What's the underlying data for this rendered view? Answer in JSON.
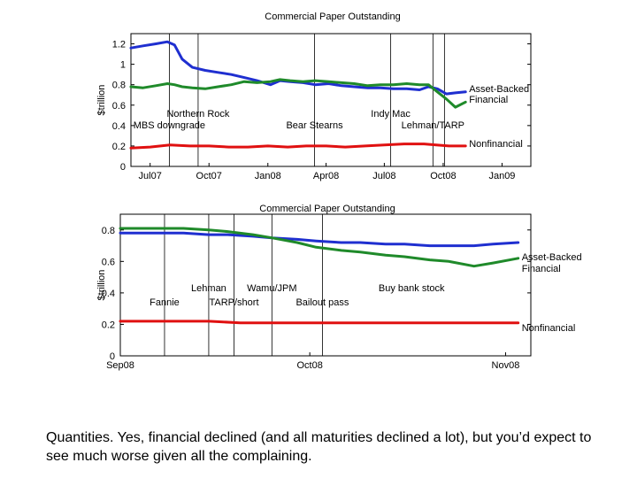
{
  "chart_data": [
    {
      "type": "line",
      "title": "Commercial Paper Outstanding",
      "ylabel": "$trillion",
      "ylim": [
        0,
        1.3
      ],
      "yticks": [
        "0",
        "0.2",
        "0.4",
        "0.6",
        "0.8",
        "1",
        "1.2"
      ],
      "xlim": [
        "2007-06-01",
        "2009-02-15"
      ],
      "xticks": [
        {
          "date": "2007-07-01",
          "label": "Jul07"
        },
        {
          "date": "2007-10-01",
          "label": "Oct07"
        },
        {
          "date": "2008-01-01",
          "label": "Jan08"
        },
        {
          "date": "2008-04-01",
          "label": "Apr08"
        },
        {
          "date": "2008-07-01",
          "label": "Jul08"
        },
        {
          "date": "2008-10-01",
          "label": "Oct08"
        },
        {
          "date": "2009-01-01",
          "label": "Jan09"
        }
      ],
      "events": [
        {
          "date": "2007-07-31",
          "labels": [
            "MBS downgrade"
          ]
        },
        {
          "date": "2007-09-14",
          "labels": [
            "Northern Rock"
          ]
        },
        {
          "date": "2008-03-14",
          "labels": [
            "Bear Stearns"
          ]
        },
        {
          "date": "2008-07-11",
          "labels": [
            "Indy Mac"
          ]
        },
        {
          "date": "2008-09-15",
          "labels": [
            "Lehman/TARP"
          ]
        },
        {
          "date": "2008-10-03",
          "labels": []
        }
      ],
      "series": [
        {
          "name": "Asset-Backed",
          "color": "#1f2fd0",
          "x": [
            "2007-06-01",
            "2007-06-20",
            "2007-07-10",
            "2007-07-28",
            "2007-08-08",
            "2007-08-20",
            "2007-09-05",
            "2007-09-25",
            "2007-10-15",
            "2007-11-05",
            "2007-11-25",
            "2007-12-15",
            "2008-01-05",
            "2008-01-20",
            "2008-02-05",
            "2008-02-25",
            "2008-03-15",
            "2008-04-05",
            "2008-04-25",
            "2008-05-15",
            "2008-06-05",
            "2008-06-25",
            "2008-07-15",
            "2008-08-05",
            "2008-08-25",
            "2008-09-08",
            "2008-09-22",
            "2008-10-06",
            "2008-10-20",
            "2008-11-05"
          ],
          "y": [
            1.16,
            1.18,
            1.2,
            1.22,
            1.19,
            1.05,
            0.97,
            0.94,
            0.92,
            0.9,
            0.87,
            0.84,
            0.8,
            0.84,
            0.83,
            0.82,
            0.8,
            0.81,
            0.79,
            0.78,
            0.77,
            0.77,
            0.76,
            0.76,
            0.75,
            0.78,
            0.76,
            0.71,
            0.72,
            0.73
          ]
        },
        {
          "name": "Financial",
          "color": "#1f8a2a",
          "x": [
            "2007-06-01",
            "2007-06-20",
            "2007-07-10",
            "2007-07-28",
            "2007-08-08",
            "2007-08-20",
            "2007-09-05",
            "2007-09-25",
            "2007-10-15",
            "2007-11-05",
            "2007-11-25",
            "2007-12-15",
            "2008-01-05",
            "2008-01-20",
            "2008-02-05",
            "2008-02-25",
            "2008-03-15",
            "2008-04-05",
            "2008-04-25",
            "2008-05-15",
            "2008-06-05",
            "2008-06-25",
            "2008-07-15",
            "2008-08-05",
            "2008-08-25",
            "2008-09-08",
            "2008-09-22",
            "2008-10-06",
            "2008-10-20",
            "2008-11-05"
          ],
          "y": [
            0.78,
            0.77,
            0.79,
            0.81,
            0.8,
            0.78,
            0.77,
            0.76,
            0.78,
            0.8,
            0.83,
            0.82,
            0.83,
            0.85,
            0.84,
            0.83,
            0.84,
            0.83,
            0.82,
            0.81,
            0.79,
            0.8,
            0.8,
            0.81,
            0.8,
            0.8,
            0.73,
            0.66,
            0.58,
            0.63
          ]
        },
        {
          "name": "Nonfinancial",
          "color": "#e01010",
          "x": [
            "2007-06-01",
            "2007-07-01",
            "2007-08-01",
            "2007-09-01",
            "2007-10-01",
            "2007-11-01",
            "2007-12-01",
            "2008-01-01",
            "2008-02-01",
            "2008-03-01",
            "2008-04-01",
            "2008-05-01",
            "2008-06-01",
            "2008-07-01",
            "2008-08-01",
            "2008-09-01",
            "2008-09-20",
            "2008-10-10",
            "2008-11-05"
          ],
          "y": [
            0.18,
            0.19,
            0.21,
            0.2,
            0.2,
            0.19,
            0.19,
            0.2,
            0.19,
            0.2,
            0.2,
            0.19,
            0.2,
            0.21,
            0.22,
            0.22,
            0.21,
            0.2,
            0.2
          ]
        }
      ]
    },
    {
      "type": "line",
      "title": "Commercial Paper Outstanding",
      "ylabel": "$trillion",
      "ylim": [
        0,
        0.9
      ],
      "yticks": [
        "0",
        "0.2",
        "0.4",
        "0.6",
        "0.8"
      ],
      "xlim": [
        "2008-09-01",
        "2008-11-05"
      ],
      "xticks": [
        {
          "date": "2008-09-01",
          "label": "Sep08"
        },
        {
          "date": "2008-10-01",
          "label": "Oct08"
        },
        {
          "date": "2008-11-01",
          "label": "Nov08"
        }
      ],
      "events": [
        {
          "date": "2008-09-08",
          "labels": [
            "Fannie"
          ]
        },
        {
          "date": "2008-09-15",
          "labels": [
            "Lehman"
          ]
        },
        {
          "date": "2008-09-19",
          "labels": [
            "TARP/short"
          ]
        },
        {
          "date": "2008-09-25",
          "labels": [
            "Wamu/JPM"
          ]
        },
        {
          "date": "2008-10-03",
          "labels": [
            "Bailout pass"
          ]
        }
      ],
      "annotations": [
        "Buy bank stock"
      ],
      "series": [
        {
          "name": "Asset-Backed",
          "color": "#1f2fd0",
          "x": [
            "2008-09-01",
            "2008-09-04",
            "2008-09-08",
            "2008-09-11",
            "2008-09-15",
            "2008-09-18",
            "2008-09-22",
            "2008-09-25",
            "2008-09-29",
            "2008-10-02",
            "2008-10-06",
            "2008-10-09",
            "2008-10-13",
            "2008-10-16",
            "2008-10-20",
            "2008-10-23",
            "2008-10-27",
            "2008-10-30",
            "2008-11-03"
          ],
          "y": [
            0.78,
            0.78,
            0.78,
            0.78,
            0.77,
            0.77,
            0.76,
            0.75,
            0.74,
            0.73,
            0.72,
            0.72,
            0.71,
            0.71,
            0.7,
            0.7,
            0.7,
            0.71,
            0.72
          ]
        },
        {
          "name": "Financial",
          "color": "#1f8a2a",
          "x": [
            "2008-09-01",
            "2008-09-04",
            "2008-09-08",
            "2008-09-11",
            "2008-09-15",
            "2008-09-18",
            "2008-09-22",
            "2008-09-25",
            "2008-09-29",
            "2008-10-02",
            "2008-10-06",
            "2008-10-09",
            "2008-10-13",
            "2008-10-16",
            "2008-10-20",
            "2008-10-23",
            "2008-10-27",
            "2008-10-30",
            "2008-11-03"
          ],
          "y": [
            0.81,
            0.81,
            0.81,
            0.81,
            0.8,
            0.79,
            0.77,
            0.75,
            0.72,
            0.69,
            0.67,
            0.66,
            0.64,
            0.63,
            0.61,
            0.6,
            0.57,
            0.59,
            0.62
          ]
        },
        {
          "name": "Nonfinancial",
          "color": "#e01010",
          "x": [
            "2008-09-01",
            "2008-09-05",
            "2008-09-10",
            "2008-09-15",
            "2008-09-20",
            "2008-09-25",
            "2008-10-01",
            "2008-10-06",
            "2008-10-13",
            "2008-10-20",
            "2008-10-27",
            "2008-11-03"
          ],
          "y": [
            0.22,
            0.22,
            0.22,
            0.22,
            0.21,
            0.21,
            0.21,
            0.21,
            0.21,
            0.21,
            0.21,
            0.21
          ]
        }
      ]
    }
  ],
  "caption": "Quantities. Yes, financial declined (and all maturities declined a lot), but you’d expect to see much worse given all the complaining."
}
